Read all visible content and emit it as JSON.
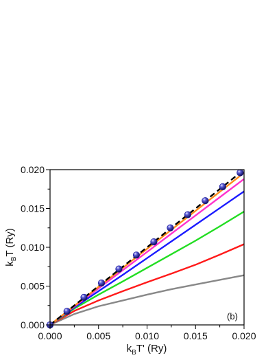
{
  "chart_data": {
    "type": "line",
    "panel_label": "(b)",
    "xlabel": {
      "main": "k",
      "sub": "B",
      "rest": "T' (Ry)"
    },
    "ylabel": {
      "main": "k",
      "sub": "B",
      "rest": "T (Ry)"
    },
    "xlim": [
      0,
      0.02
    ],
    "ylim": [
      0,
      0.02
    ],
    "x_ticks": [
      "0.000",
      "0.005",
      "0.010",
      "0.015",
      "0.020"
    ],
    "y_ticks": [
      "0.000",
      "0.005",
      "0.010",
      "0.015",
      "0.020"
    ],
    "grid": false,
    "x": [
      0,
      0.0025,
      0.005,
      0.0075,
      0.01,
      0.0125,
      0.015,
      0.0175,
      0.02
    ],
    "series": [
      {
        "color": "#000000",
        "dash": "8,5",
        "values": [
          0,
          0.0025,
          0.005,
          0.0075,
          0.01,
          0.0125,
          0.015,
          0.0175,
          0.02
        ]
      },
      {
        "color": "#ff8c1a",
        "values": [
          0,
          0.00245,
          0.0049,
          0.00735,
          0.0098,
          0.01225,
          0.0147,
          0.01715,
          0.0196
        ]
      },
      {
        "color": "#ff33cc",
        "values": [
          0,
          0.00237,
          0.0047,
          0.00705,
          0.0094,
          0.01175,
          0.0141,
          0.01645,
          0.0188
        ]
      },
      {
        "color": "#1a1aff",
        "values": [
          0,
          0.00225,
          0.00435,
          0.00645,
          0.0086,
          0.01075,
          0.0129,
          0.01505,
          0.0172
        ]
      },
      {
        "color": "#22dd22",
        "values": [
          0,
          0.0021,
          0.0039,
          0.0056,
          0.00735,
          0.0091,
          0.01085,
          0.0127,
          0.0146
        ]
      },
      {
        "color": "#ff1a1a",
        "values": [
          0,
          0.0018,
          0.00315,
          0.00435,
          0.0055,
          0.0066,
          0.00775,
          0.00905,
          0.0104
        ]
      },
      {
        "color": "#888888",
        "values": [
          0,
          0.0014,
          0.0024,
          0.00315,
          0.0039,
          0.0046,
          0.0052,
          0.0058,
          0.0064
        ]
      }
    ],
    "points": {
      "color": "#1a1a99",
      "x": [
        0,
        0.00175,
        0.0035,
        0.0053,
        0.0071,
        0.0089,
        0.0107,
        0.0124,
        0.0142,
        0.016,
        0.0178,
        0.0196
      ],
      "y": [
        0,
        0.00175,
        0.00355,
        0.0054,
        0.0072,
        0.009,
        0.0107,
        0.0125,
        0.0142,
        0.016,
        0.0178,
        0.0196
      ]
    }
  }
}
